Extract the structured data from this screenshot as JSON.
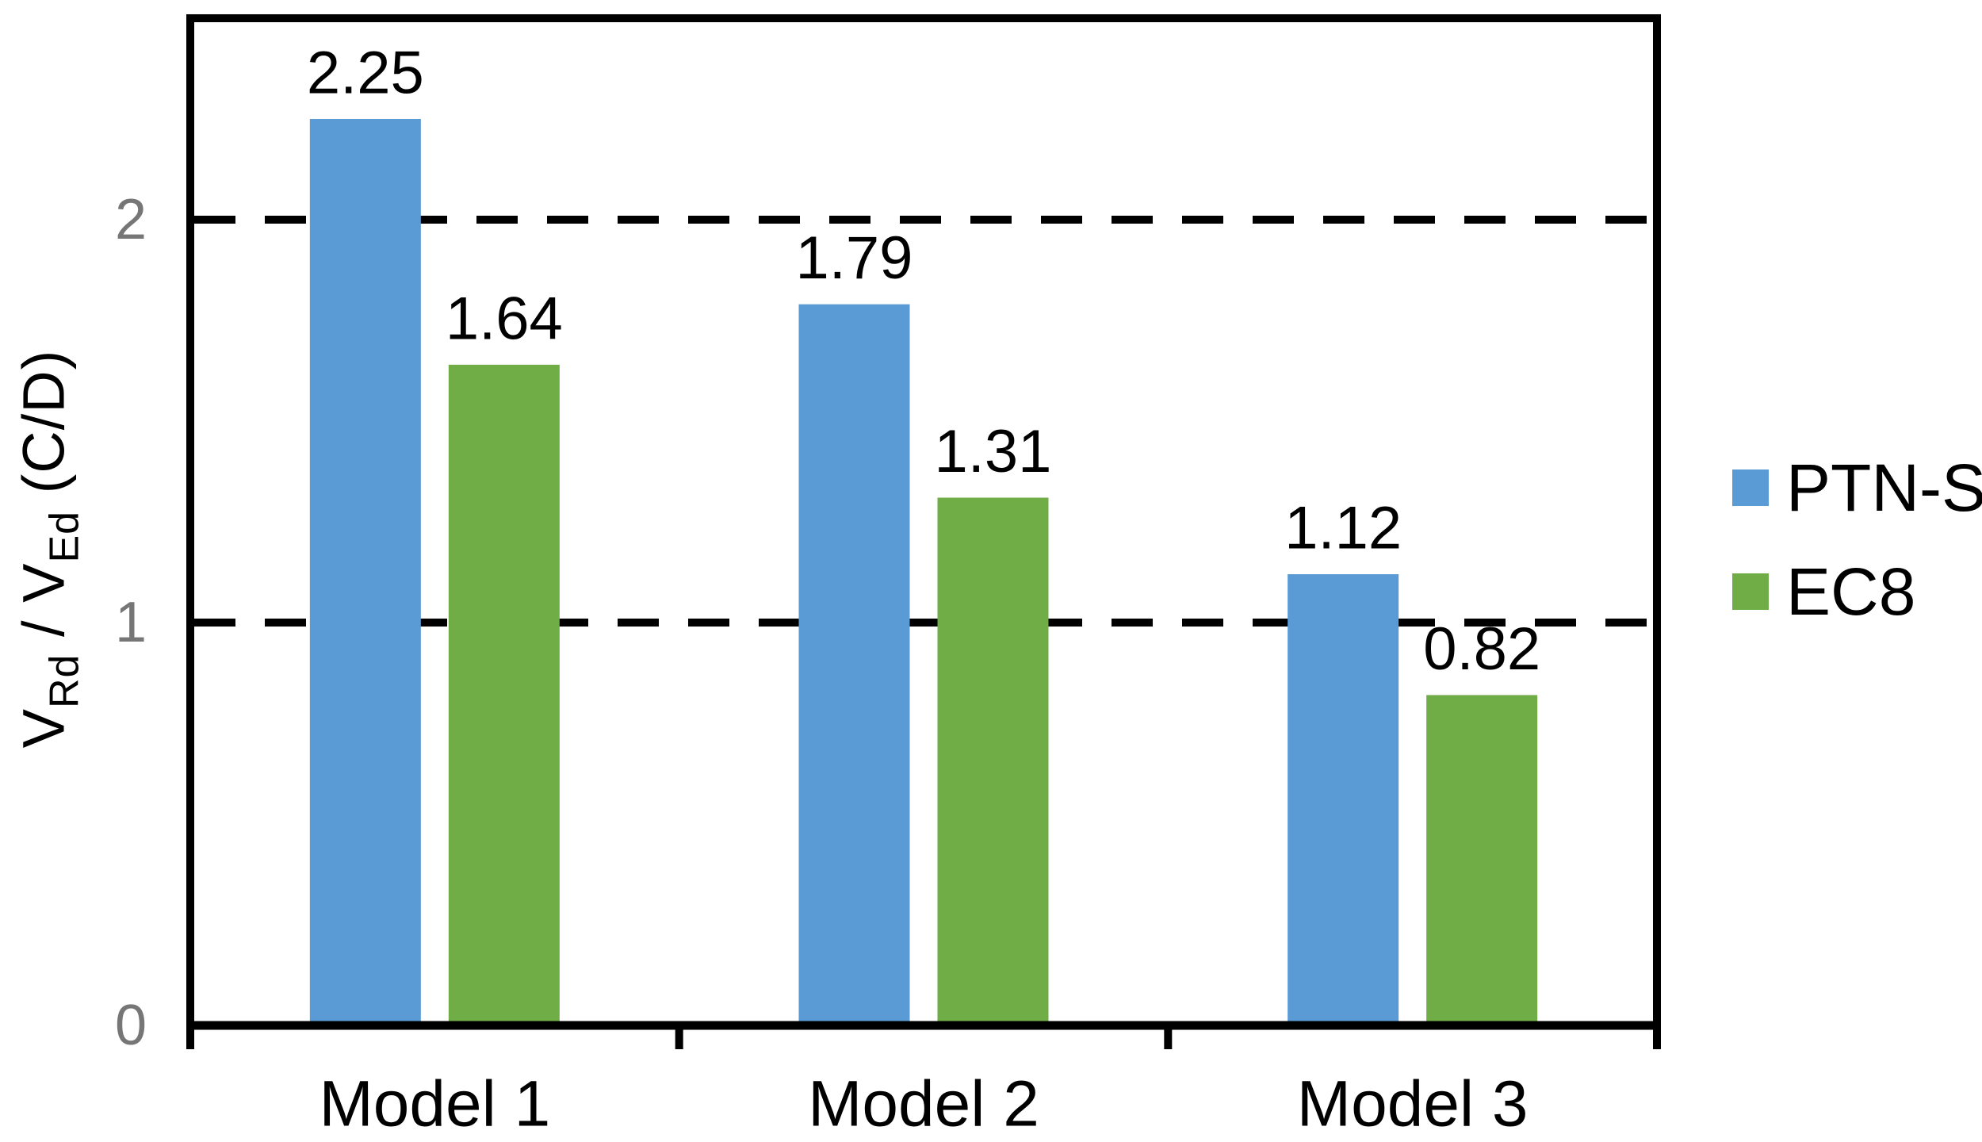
{
  "chart_data": {
    "type": "bar",
    "categories": [
      "Model 1",
      "Model 2",
      "Model 3"
    ],
    "series": [
      {
        "name": "PTN-S",
        "color": "#5B9BD5",
        "values": [
          2.25,
          1.79,
          1.12
        ]
      },
      {
        "name": "EC8",
        "color": "#70AD47",
        "values": [
          1.64,
          1.31,
          0.82
        ]
      }
    ],
    "data_labels": [
      [
        "2.25",
        "1.79",
        "1.12"
      ],
      [
        "1.64",
        "1.31",
        "0.82"
      ]
    ],
    "ylabel": "V_Rd / V_Ed (C/D)",
    "ylabel_parts": [
      {
        "text": "V",
        "sub": false
      },
      {
        "text": "Rd",
        "sub": true
      },
      {
        "text": " / V",
        "sub": false
      },
      {
        "text": "Ed",
        "sub": true
      },
      {
        "text": " (C/D)",
        "sub": false
      }
    ],
    "yticks": [
      {
        "value": 0,
        "label": "0"
      },
      {
        "value": 1,
        "label": "1"
      },
      {
        "value": 2,
        "label": "2"
      }
    ],
    "gridline_values": [
      1,
      2
    ],
    "ylim": [
      0,
      2.5
    ],
    "xlabel": "",
    "legend_position": "right",
    "grid_style": "dashed-horizontal",
    "colors": {
      "axis": "#000000",
      "gridline": "#000000",
      "data_label": "#000000",
      "tick_label": "#767676",
      "category_label": "#000000",
      "background": "#FFFFFF"
    }
  }
}
